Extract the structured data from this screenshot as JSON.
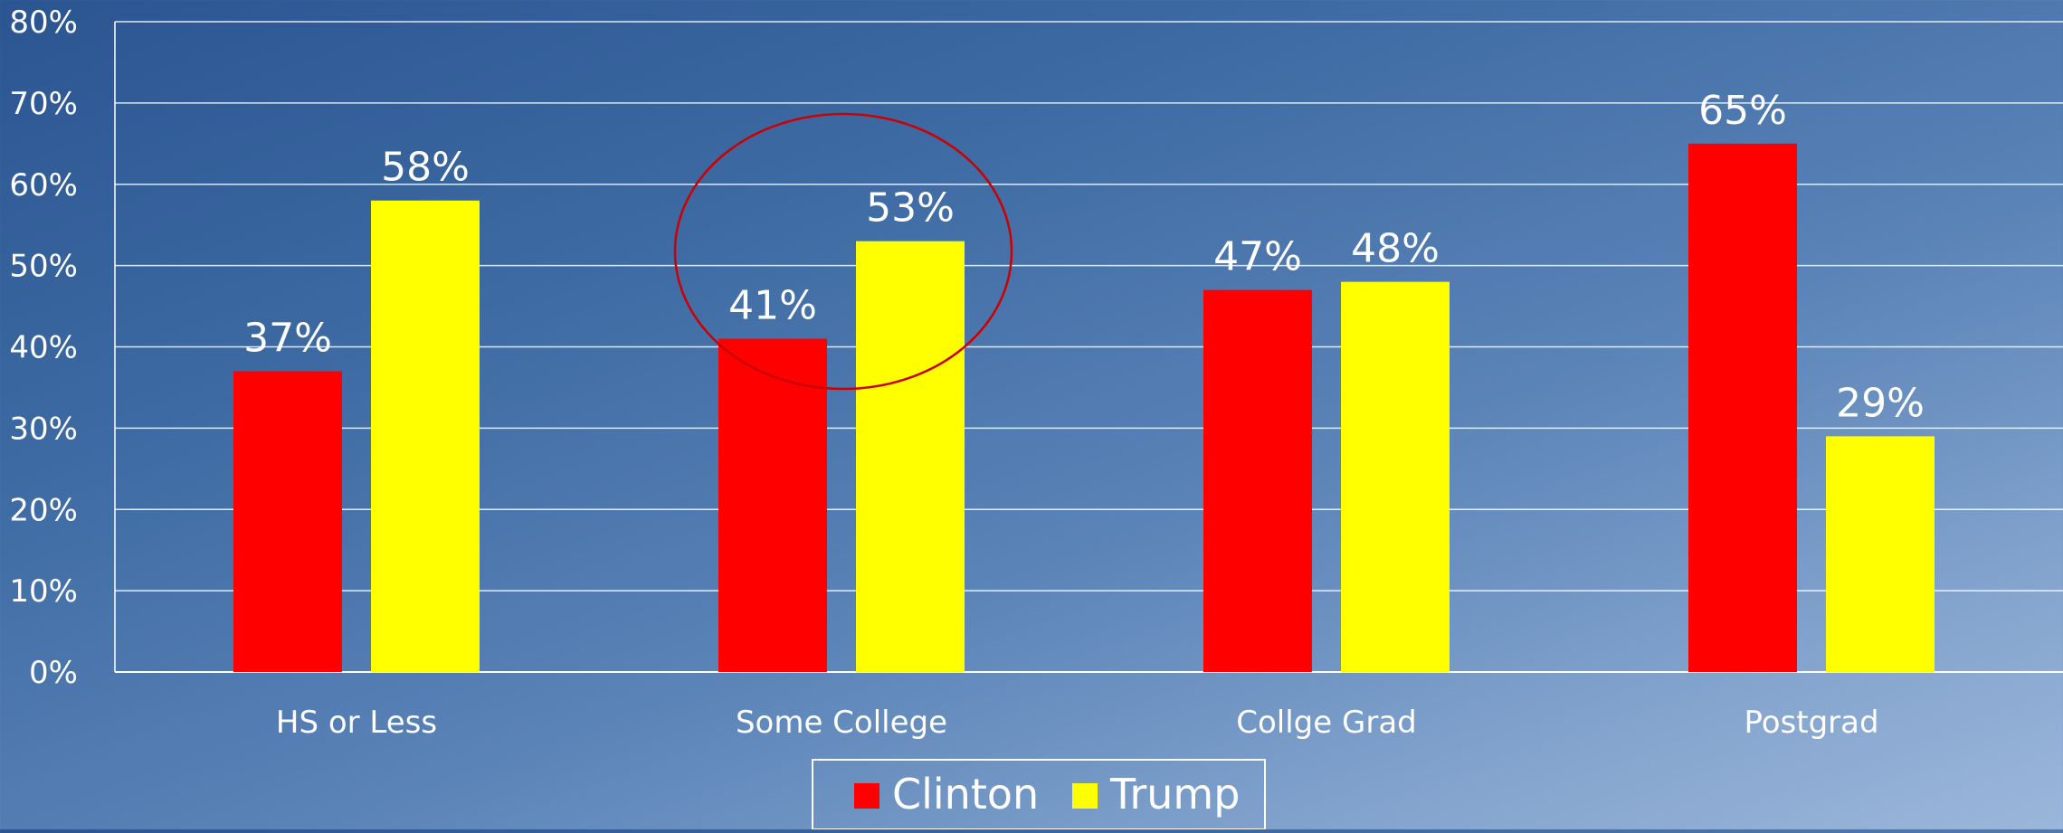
{
  "chart_data": {
    "type": "bar",
    "categories": [
      "HS or Less",
      "Some College",
      "Collge Grad",
      "Postgrad"
    ],
    "series": [
      {
        "name": "Clinton",
        "values": [
          37,
          41,
          47,
          65
        ],
        "labels": [
          "37%",
          "41%",
          "47%",
          "65%"
        ],
        "color": "#ff0000"
      },
      {
        "name": "Trump",
        "values": [
          58,
          53,
          48,
          29
        ],
        "labels": [
          "58%",
          "53%",
          "48%",
          "29%"
        ],
        "color": "#ffff00"
      }
    ],
    "y_ticks": [
      "0%",
      "10%",
      "20%",
      "30%",
      "40%",
      "50%",
      "60%",
      "70%",
      "80%"
    ],
    "ylim": [
      0,
      80
    ],
    "grid": true,
    "legend_position": "bottom",
    "highlight": {
      "shape": "ellipse",
      "category": "Some College",
      "color": "#cc0000"
    }
  }
}
